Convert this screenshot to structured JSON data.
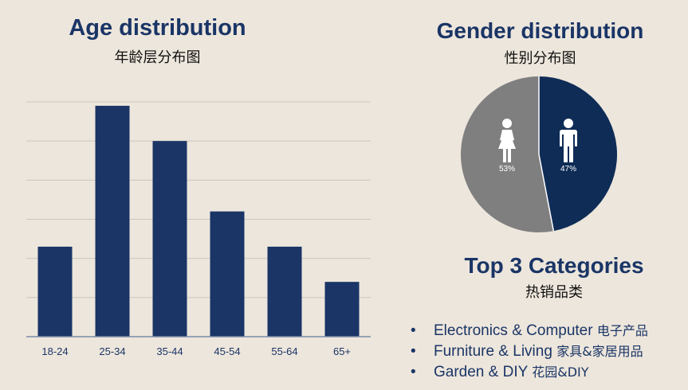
{
  "age": {
    "title": "Age distribution",
    "subtitle": "年龄层分布图"
  },
  "gender": {
    "title": "Gender distribution",
    "subtitle": "性别分布图"
  },
  "categories": {
    "title": "Top 3 Categories",
    "subtitle": "热销品类",
    "items": [
      {
        "en": "Electronics & Computer",
        "zh": "电子产品"
      },
      {
        "en": "Furniture & Living",
        "zh": "家具&家居用品"
      },
      {
        "en": "Garden & DIY",
        "zh": "花园&DIY"
      }
    ]
  },
  "colors": {
    "bar": "#1a3566",
    "female": "#7f7f7f",
    "male": "#0e2c56",
    "grid": "#c9c7c2",
    "background": "#ede6dc"
  },
  "chart_data": [
    {
      "type": "bar",
      "title": "Age distribution",
      "subtitle": "年龄层分布图",
      "categories": [
        "18-24",
        "25-34",
        "35-44",
        "45-54",
        "55-64",
        "65+"
      ],
      "values": [
        23,
        59,
        50,
        32,
        23,
        14
      ],
      "ylim": [
        0,
        60
      ],
      "grid": true,
      "legend": "none"
    },
    {
      "type": "pie",
      "title": "Gender distribution",
      "subtitle": "性别分布图",
      "slices": [
        {
          "label": "female",
          "icon": "female-icon",
          "value": 53,
          "display": "53%"
        },
        {
          "label": "male",
          "icon": "male-icon",
          "value": 47,
          "display": "47%"
        }
      ]
    }
  ]
}
